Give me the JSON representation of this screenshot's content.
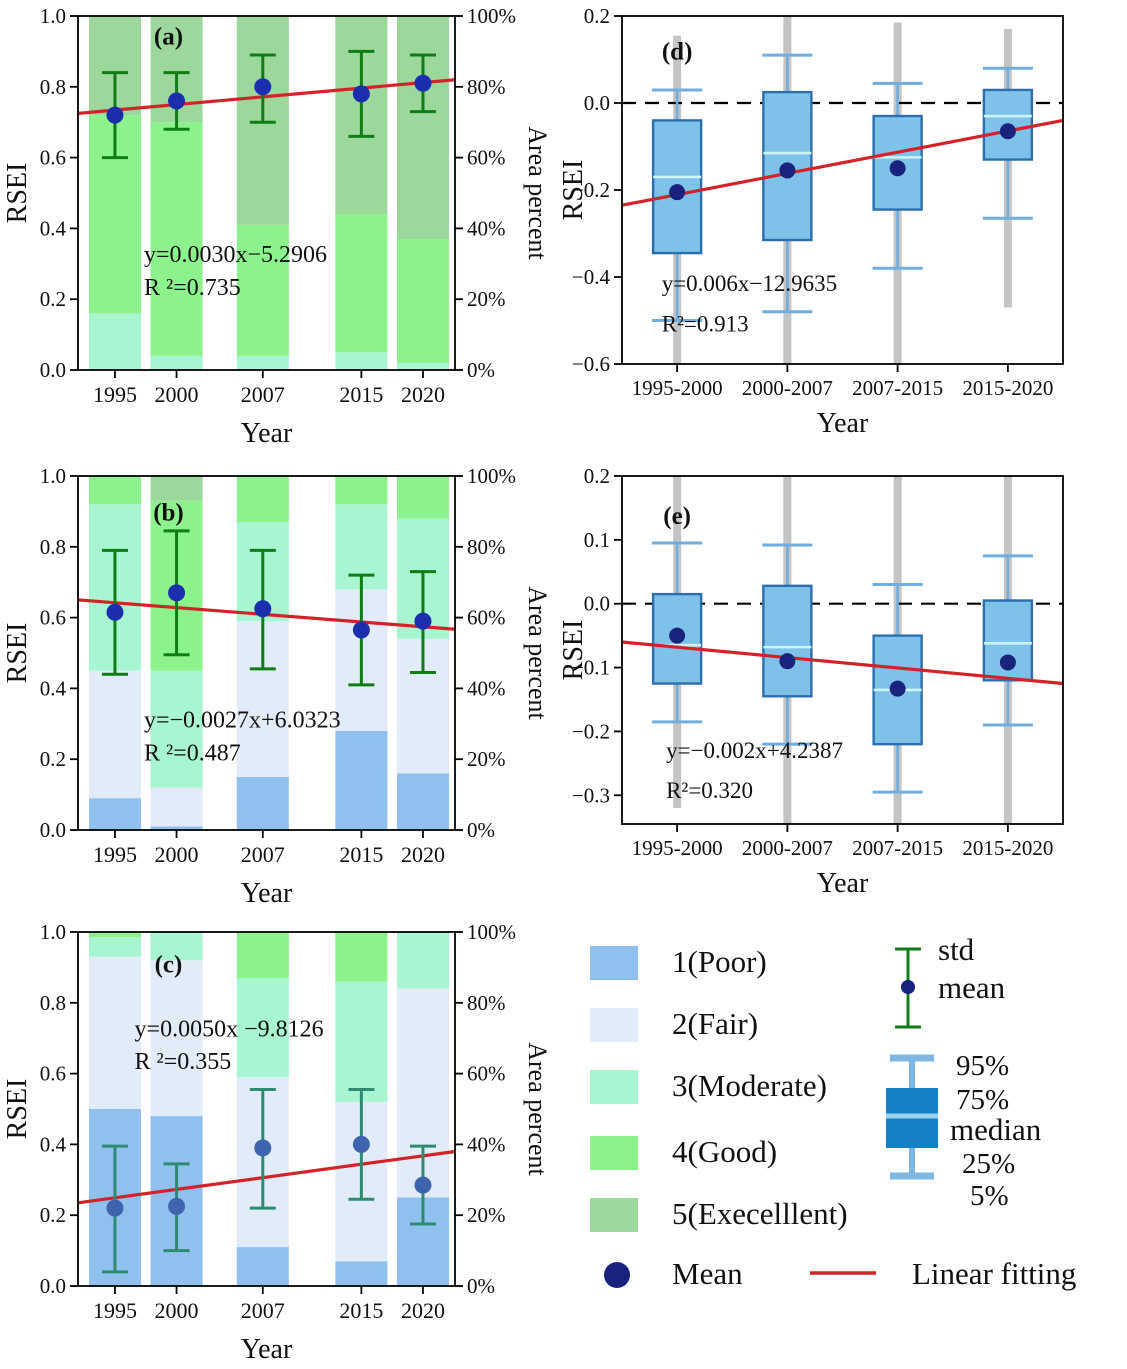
{
  "colors": {
    "poor": "#8FC0EE",
    "fair": "#E2ECF8",
    "moderate": "#A8F5D1",
    "good": "#8CF28C",
    "excellent": "#9CD79B",
    "box_fill": "#7EC2EA",
    "box_edge": "#2D6FAE",
    "whisker": "#6FAEDF",
    "median_line": "#CDF4F4",
    "gray_line": "#C4C4C4",
    "mean_dot": "#19227D",
    "mean_dot_navy": "#1B2EAE",
    "mean_dot_slate": "#3E64AE",
    "errorbar_green": "#0F7D14",
    "errorbar_teal": "#2E8B72",
    "trend_red": "#D42328",
    "legend_box_fill": "#1480C6",
    "legend_box_whisker": "#7EB8E2",
    "legend_box_median": "#9BD2EE",
    "axis": "#000000"
  },
  "legend": {
    "classes": [
      {
        "label": "1(Poor)",
        "color_key": "poor"
      },
      {
        "label": "2(Fair)",
        "color_key": "fair"
      },
      {
        "label": "3(Moderate)",
        "color_key": "moderate"
      },
      {
        "label": "4(Good)",
        "color_key": "good"
      },
      {
        "label": "5(Execelllent)",
        "color_key": "excellent"
      }
    ],
    "mean_label": "Mean",
    "linear_label": "Linear fitting",
    "std_label": "std",
    "mean_small_label": "mean",
    "box": {
      "p95": "95%",
      "p75": "75%",
      "median": "median",
      "p25": "25%",
      "p5": "5%"
    }
  },
  "chart_data": [
    {
      "panel": "a",
      "type": "stacked-bar",
      "label": "(a)",
      "xlabel": "Year",
      "ylabel": "RSEI",
      "ylabel_right": "Area percent",
      "ylim": [
        0,
        1
      ],
      "yticks": [
        {
          "v": 1,
          "label": "1.0"
        },
        {
          "v": 0.8,
          "label": "0.8"
        },
        {
          "v": 0.6,
          "label": "0.6"
        },
        {
          "v": 0.4,
          "label": "0.4"
        },
        {
          "v": 0.2,
          "label": "0.2"
        },
        {
          "v": 0,
          "label": "0.0"
        }
      ],
      "right_ticks": [
        {
          "v": 1,
          "label": "100%"
        },
        {
          "v": 0.8,
          "label": "80%"
        },
        {
          "v": 0.6,
          "label": "60%"
        },
        {
          "v": 0.4,
          "label": "40%"
        },
        {
          "v": 0.2,
          "label": "20%"
        },
        {
          "v": 0,
          "label": "0%"
        }
      ],
      "x": [
        1995,
        2000,
        2007,
        2015,
        2020
      ],
      "x_labels": [
        "1995",
        "2000",
        "2007",
        "2015",
        "2020"
      ],
      "bars": [
        {
          "year": 1995,
          "segments": [
            {
              "cls": "moderate",
              "value": 0.16
            },
            {
              "cls": "good",
              "value": 0.56
            },
            {
              "cls": "excellent",
              "value": 0.28
            }
          ]
        },
        {
          "year": 2000,
          "segments": [
            {
              "cls": "moderate",
              "value": 0.04
            },
            {
              "cls": "good",
              "value": 0.66
            },
            {
              "cls": "excellent",
              "value": 0.3
            }
          ]
        },
        {
          "year": 2007,
          "segments": [
            {
              "cls": "moderate",
              "value": 0.04
            },
            {
              "cls": "good",
              "value": 0.37
            },
            {
              "cls": "excellent",
              "value": 0.59
            }
          ]
        },
        {
          "year": 2015,
          "segments": [
            {
              "cls": "moderate",
              "value": 0.05
            },
            {
              "cls": "good",
              "value": 0.39
            },
            {
              "cls": "excellent",
              "value": 0.56
            }
          ]
        },
        {
          "year": 2020,
          "segments": [
            {
              "cls": "moderate",
              "value": 0.02
            },
            {
              "cls": "good",
              "value": 0.35
            },
            {
              "cls": "excellent",
              "value": 0.63
            }
          ]
        }
      ],
      "mean": [
        0.72,
        0.76,
        0.8,
        0.78,
        0.81
      ],
      "std_lo": [
        0.6,
        0.68,
        0.7,
        0.66,
        0.73
      ],
      "std_hi": [
        0.84,
        0.84,
        0.89,
        0.9,
        0.89
      ],
      "trend": {
        "left": 0.725,
        "right": 0.82
      },
      "eq": "y=0.0030x−5.2906",
      "r2": "R ²=0.735",
      "eq_fx": 0.175,
      "eq_y": 0.305,
      "r2_y": 0.212,
      "label_fx": 0.24,
      "label_y": 0.92,
      "errorbar_color": "#0F7D14",
      "mean_color": "#1B2EAE"
    },
    {
      "panel": "d",
      "type": "boxplot",
      "label": "(d)",
      "xlabel": "Year",
      "ylabel": "RSEI",
      "ylim": [
        -0.6,
        0.2
      ],
      "yticks": [
        {
          "v": 0.2,
          "label": "0.2"
        },
        {
          "v": 0,
          "label": "0.0"
        },
        {
          "v": -0.2,
          "label": "−0.2"
        },
        {
          "v": -0.4,
          "label": "−0.4"
        },
        {
          "v": -0.6,
          "label": "−0.6"
        }
      ],
      "categories": [
        "1995-2000",
        "2000-2007",
        "2007-2015",
        "2015-2020"
      ],
      "gray": [
        [
          -0.6,
          0.155
        ],
        [
          -0.6,
          0.2
        ],
        [
          -0.6,
          0.185
        ],
        [
          -0.47,
          0.17
        ]
      ],
      "whisk_lo": [
        -0.5,
        -0.48,
        -0.38,
        -0.265
      ],
      "whisk_hi": [
        0.03,
        0.11,
        0.045,
        0.08
      ],
      "q1": [
        -0.345,
        -0.315,
        -0.245,
        -0.13
      ],
      "q3": [
        -0.04,
        0.025,
        -0.03,
        0.03
      ],
      "median": [
        -0.17,
        -0.115,
        -0.125,
        -0.03
      ],
      "mean": [
        -0.205,
        -0.155,
        -0.15,
        -0.065
      ],
      "zero_line": true,
      "trend": {
        "left": -0.235,
        "right": -0.04
      },
      "eq": "y=0.006x−12.9635",
      "r2": "R²=0.913",
      "eq_fx": 0.09,
      "eq_y": -0.432,
      "r2_y": -0.525,
      "label_fx": 0.125,
      "label_y": 0.125
    },
    {
      "panel": "b",
      "type": "stacked-bar",
      "label": "(b)",
      "xlabel": "Year",
      "ylabel": "RSEI",
      "ylabel_right": "Area percent",
      "ylim": [
        0,
        1
      ],
      "yticks": [
        {
          "v": 1,
          "label": "1.0"
        },
        {
          "v": 0.8,
          "label": "0.8"
        },
        {
          "v": 0.6,
          "label": "0.6"
        },
        {
          "v": 0.4,
          "label": "0.4"
        },
        {
          "v": 0.2,
          "label": "0.2"
        },
        {
          "v": 0,
          "label": "0.0"
        }
      ],
      "right_ticks": [
        {
          "v": 1,
          "label": "100%"
        },
        {
          "v": 0.8,
          "label": "80%"
        },
        {
          "v": 0.6,
          "label": "60%"
        },
        {
          "v": 0.4,
          "label": "40%"
        },
        {
          "v": 0.2,
          "label": "20%"
        },
        {
          "v": 0,
          "label": "0%"
        }
      ],
      "x": [
        1995,
        2000,
        2007,
        2015,
        2020
      ],
      "x_labels": [
        "1995",
        "2000",
        "2007",
        "2015",
        "2020"
      ],
      "bars": [
        {
          "year": 1995,
          "segments": [
            {
              "cls": "poor",
              "value": 0.09
            },
            {
              "cls": "fair",
              "value": 0.36
            },
            {
              "cls": "moderate",
              "value": 0.47
            },
            {
              "cls": "good",
              "value": 0.08
            }
          ]
        },
        {
          "year": 2000,
          "segments": [
            {
              "cls": "poor",
              "value": 0.01
            },
            {
              "cls": "fair",
              "value": 0.11
            },
            {
              "cls": "moderate",
              "value": 0.33
            },
            {
              "cls": "good",
              "value": 0.48
            },
            {
              "cls": "excellent",
              "value": 0.07
            }
          ]
        },
        {
          "year": 2007,
          "segments": [
            {
              "cls": "poor",
              "value": 0.15
            },
            {
              "cls": "fair",
              "value": 0.44
            },
            {
              "cls": "moderate",
              "value": 0.28
            },
            {
              "cls": "good",
              "value": 0.13
            }
          ]
        },
        {
          "year": 2015,
          "segments": [
            {
              "cls": "poor",
              "value": 0.28
            },
            {
              "cls": "fair",
              "value": 0.4
            },
            {
              "cls": "moderate",
              "value": 0.24
            },
            {
              "cls": "good",
              "value": 0.08
            }
          ]
        },
        {
          "year": 2020,
          "segments": [
            {
              "cls": "poor",
              "value": 0.16
            },
            {
              "cls": "fair",
              "value": 0.38
            },
            {
              "cls": "moderate",
              "value": 0.34
            },
            {
              "cls": "good",
              "value": 0.12
            }
          ]
        }
      ],
      "mean": [
        0.615,
        0.67,
        0.625,
        0.565,
        0.59
      ],
      "std_lo": [
        0.44,
        0.495,
        0.455,
        0.41,
        0.445
      ],
      "std_hi": [
        0.79,
        0.845,
        0.79,
        0.72,
        0.73
      ],
      "trend": {
        "left": 0.65,
        "right": 0.567
      },
      "eq": "y=−0.0027x+6.0323",
      "r2": "R ²=0.487",
      "eq_fx": 0.175,
      "eq_y": 0.29,
      "r2_y": 0.197,
      "label_fx": 0.24,
      "label_y": 0.875,
      "errorbar_color": "#0F7D14",
      "mean_color": "#1B2EAE"
    },
    {
      "panel": "e",
      "type": "boxplot",
      "label": "(e)",
      "xlabel": "Year",
      "ylabel": "RSEI",
      "ylim": [
        -0.345,
        0.2
      ],
      "yticks": [
        {
          "v": 0.2,
          "label": "0.2"
        },
        {
          "v": 0.1,
          "label": "0.1"
        },
        {
          "v": 0,
          "label": "0.0"
        },
        {
          "v": -0.1,
          "label": "−0.1"
        },
        {
          "v": -0.2,
          "label": "−0.2"
        },
        {
          "v": -0.3,
          "label": "−0.3"
        }
      ],
      "categories": [
        "1995-2000",
        "2000-2007",
        "2007-2015",
        "2015-2020"
      ],
      "gray": [
        [
          -0.32,
          0.2
        ],
        [
          -0.345,
          0.2
        ],
        [
          -0.345,
          0.2
        ],
        [
          -0.345,
          0.2
        ]
      ],
      "whisk_lo": [
        -0.185,
        -0.22,
        -0.295,
        -0.19
      ],
      "whisk_hi": [
        0.095,
        0.092,
        0.03,
        0.075
      ],
      "q1": [
        -0.125,
        -0.145,
        -0.22,
        -0.12
      ],
      "q3": [
        0.015,
        0.028,
        -0.05,
        0.005
      ],
      "median": [
        -0.065,
        -0.068,
        -0.135,
        -0.062
      ],
      "mean": [
        -0.05,
        -0.09,
        -0.133,
        -0.092
      ],
      "zero_line": true,
      "trend": {
        "left": -0.06,
        "right": -0.125
      },
      "eq": "y=−0.002x+4.2387",
      "r2": "R²=0.320",
      "eq_fx": 0.1,
      "eq_y": -0.242,
      "r2_y": -0.304,
      "label_fx": 0.125,
      "label_y": 0.138
    },
    {
      "panel": "c",
      "type": "stacked-bar",
      "label": "(c)",
      "xlabel": "Year",
      "ylabel": "RSEI",
      "ylabel_right": "Area percent",
      "ylim": [
        0,
        1
      ],
      "yticks": [
        {
          "v": 1,
          "label": "1.0"
        },
        {
          "v": 0.8,
          "label": "0.8"
        },
        {
          "v": 0.6,
          "label": "0.6"
        },
        {
          "v": 0.4,
          "label": "0.4"
        },
        {
          "v": 0.2,
          "label": "0.2"
        },
        {
          "v": 0,
          "label": "0.0"
        }
      ],
      "right_ticks": [
        {
          "v": 1,
          "label": "100%"
        },
        {
          "v": 0.8,
          "label": "80%"
        },
        {
          "v": 0.6,
          "label": "60%"
        },
        {
          "v": 0.4,
          "label": "40%"
        },
        {
          "v": 0.2,
          "label": "20%"
        },
        {
          "v": 0,
          "label": "0%"
        }
      ],
      "x": [
        1995,
        2000,
        2007,
        2015,
        2020
      ],
      "x_labels": [
        "1995",
        "2000",
        "2007",
        "2015",
        "2020"
      ],
      "bars": [
        {
          "year": 1995,
          "segments": [
            {
              "cls": "poor",
              "value": 0.5
            },
            {
              "cls": "fair",
              "value": 0.43
            },
            {
              "cls": "moderate",
              "value": 0.055
            },
            {
              "cls": "good",
              "value": 0.015
            }
          ]
        },
        {
          "year": 2000,
          "segments": [
            {
              "cls": "poor",
              "value": 0.48
            },
            {
              "cls": "fair",
              "value": 0.44
            },
            {
              "cls": "moderate",
              "value": 0.08
            }
          ]
        },
        {
          "year": 2007,
          "segments": [
            {
              "cls": "poor",
              "value": 0.11
            },
            {
              "cls": "fair",
              "value": 0.48
            },
            {
              "cls": "moderate",
              "value": 0.28
            },
            {
              "cls": "good",
              "value": 0.13
            }
          ]
        },
        {
          "year": 2015,
          "segments": [
            {
              "cls": "poor",
              "value": 0.07
            },
            {
              "cls": "fair",
              "value": 0.45
            },
            {
              "cls": "moderate",
              "value": 0.34
            },
            {
              "cls": "good",
              "value": 0.14
            }
          ]
        },
        {
          "year": 2020,
          "segments": [
            {
              "cls": "poor",
              "value": 0.25
            },
            {
              "cls": "fair",
              "value": 0.59
            },
            {
              "cls": "moderate",
              "value": 0.16
            }
          ]
        }
      ],
      "mean": [
        0.22,
        0.225,
        0.39,
        0.4,
        0.285
      ],
      "std_lo": [
        0.04,
        0.1,
        0.22,
        0.245,
        0.175
      ],
      "std_hi": [
        0.395,
        0.345,
        0.555,
        0.555,
        0.395
      ],
      "trend": {
        "left": 0.235,
        "right": 0.38
      },
      "eq": "y=0.0050x −9.8126",
      "r2": "R ²=0.355",
      "eq_fx": 0.15,
      "eq_y": 0.705,
      "r2_y": 0.613,
      "label_fx": 0.24,
      "label_y": 0.885,
      "errorbar_color": "#2E8B72",
      "mean_color": "#3E64AE"
    }
  ]
}
